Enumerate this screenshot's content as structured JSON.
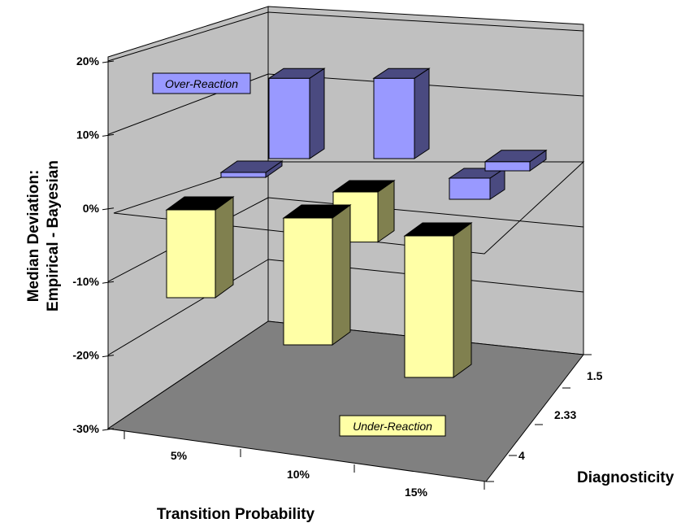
{
  "chart_data": {
    "type": "bar",
    "title": "",
    "xlabel": "Transition Probability",
    "ylabel_line1": "Median Deviation:",
    "ylabel_line2": "Empirical - Bayesian",
    "zlabel": "Diagnosticity",
    "ylim": [
      -0.3,
      0.2
    ],
    "yticks": [
      "20%",
      "10%",
      "0%",
      "-10%",
      "-20%",
      "-30%"
    ],
    "categories": [
      "5%",
      "10%",
      "15%"
    ],
    "depth_categories": [
      "1.5",
      "2.33",
      "4"
    ],
    "grid": true,
    "colors": {
      "positive_front": "#9999ff",
      "positive_side": "#4a4a80",
      "negative_front": "#ffffa6",
      "negative_side": "#80804f",
      "top_dark": "#000000",
      "floor": "#808080",
      "walls": "#c0c0c0"
    },
    "series": [
      {
        "depth": "1.5",
        "values": [
          0.19,
          0.19,
          0.05
        ]
      },
      {
        "depth": "2.33",
        "values": [
          0.01,
          -0.11,
          0.02
        ]
      },
      {
        "depth": "4",
        "values": [
          -0.18,
          -0.26,
          -0.29
        ]
      }
    ],
    "annotations": {
      "over": "Over-Reaction",
      "under": "Under-Reaction"
    }
  }
}
